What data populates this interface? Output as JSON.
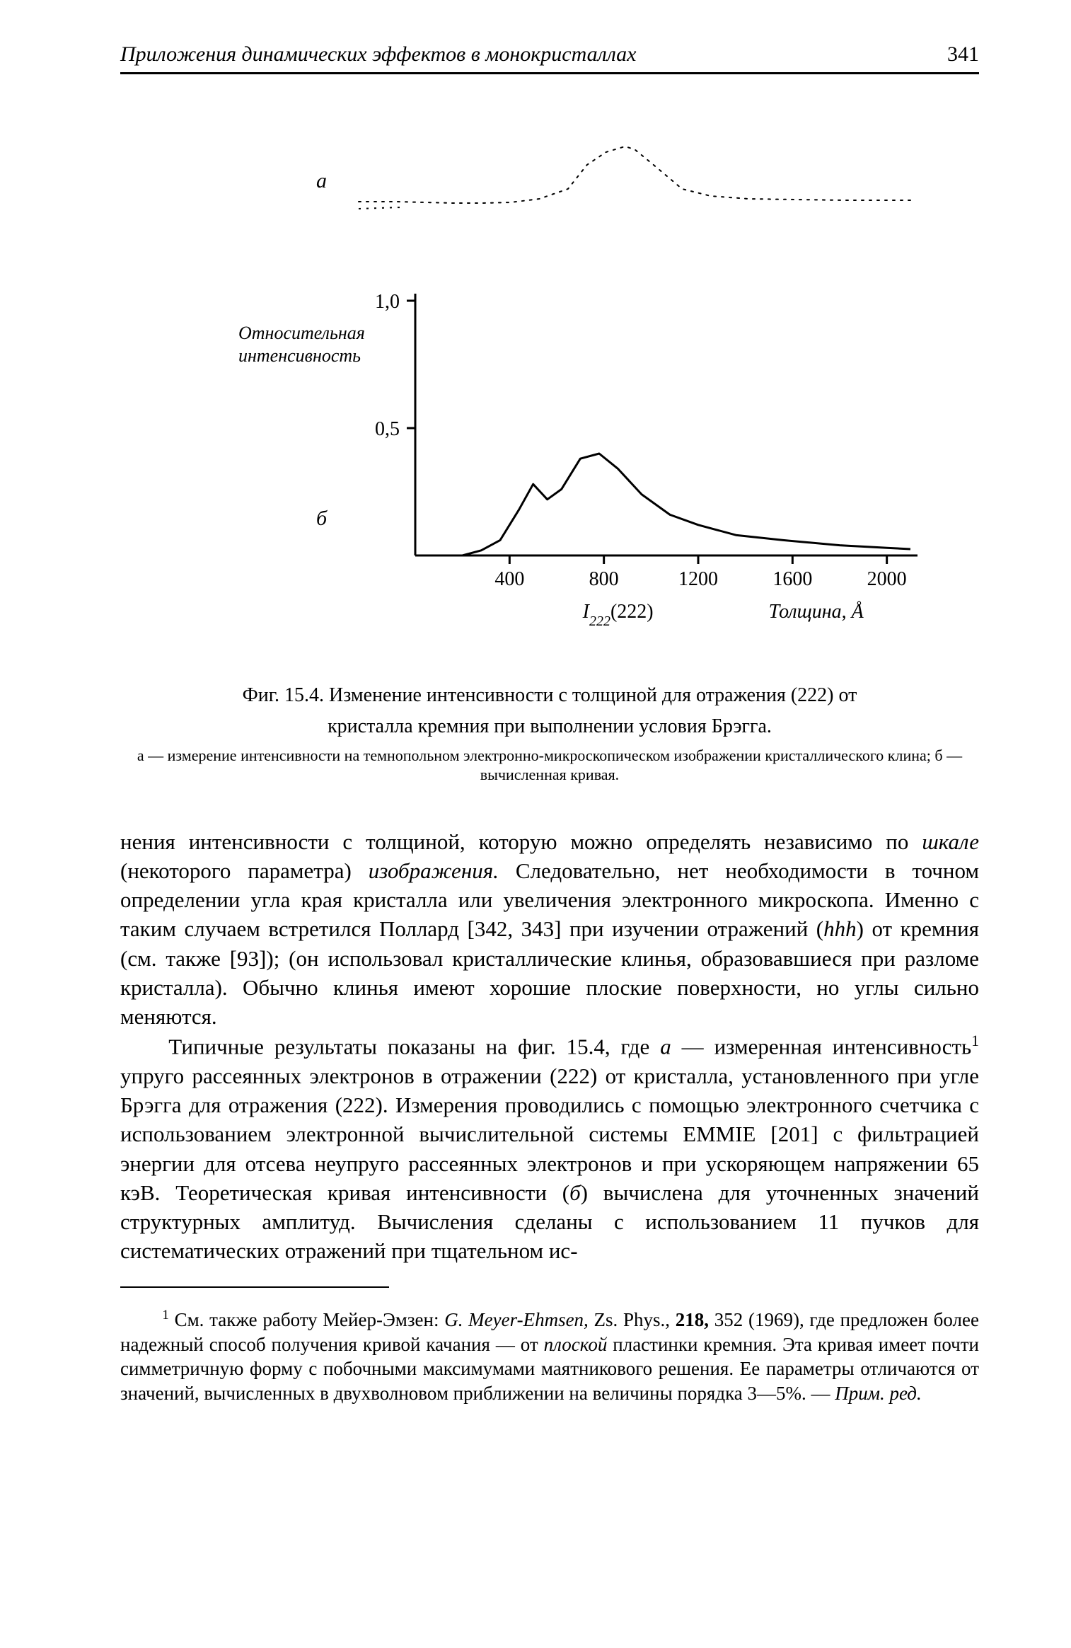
{
  "header": {
    "running_title": "Приложения динамических эффектов в монокристаллах",
    "page_number": "341"
  },
  "figure": {
    "type": "line",
    "background_color": "#ffffff",
    "axis_color": "#000000",
    "curve_a": {
      "label": "а",
      "label_fontsize": 30,
      "stroke_color": "#000000",
      "stroke_width": 2,
      "style": "dotted",
      "points": [
        [
          120,
          10
        ],
        [
          200,
          10
        ],
        [
          260,
          9
        ],
        [
          320,
          8
        ],
        [
          380,
          8
        ],
        [
          440,
          9
        ],
        [
          500,
          14
        ],
        [
          560,
          28
        ],
        [
          600,
          62
        ],
        [
          640,
          80
        ],
        [
          680,
          88
        ],
        [
          700,
          84
        ],
        [
          740,
          62
        ],
        [
          800,
          28
        ],
        [
          860,
          18
        ],
        [
          940,
          14
        ],
        [
          1040,
          13
        ],
        [
          1140,
          12
        ],
        [
          1280,
          12
        ]
      ],
      "y_offset": 0,
      "height": 110
    },
    "curve_b": {
      "label": "б",
      "label_fontsize": 30,
      "stroke_color": "#000000",
      "stroke_width": 3,
      "style": "solid",
      "y_axis": {
        "label": "Относительная\nинтенсивность",
        "label_fontsize": 26,
        "label_fontstyle": "italic",
        "ticks": [
          0.5,
          1.0
        ],
        "ylim": [
          0,
          1.0
        ]
      },
      "x_axis": {
        "ticks": [
          400,
          800,
          1200,
          1600,
          2000
        ],
        "xlim": [
          0,
          2100
        ],
        "label_left": "I",
        "label_left_sub": "222",
        "label_left_paren": "(222)",
        "label_right": "Толщина, Å",
        "label_fontsize": 28
      },
      "points": [
        [
          0,
          0.0
        ],
        [
          120,
          0.0
        ],
        [
          200,
          0.0
        ],
        [
          280,
          0.02
        ],
        [
          360,
          0.06
        ],
        [
          440,
          0.18
        ],
        [
          500,
          0.28
        ],
        [
          560,
          0.22
        ],
        [
          620,
          0.26
        ],
        [
          700,
          0.38
        ],
        [
          780,
          0.4
        ],
        [
          860,
          0.34
        ],
        [
          960,
          0.24
        ],
        [
          1080,
          0.16
        ],
        [
          1200,
          0.12
        ],
        [
          1360,
          0.08
        ],
        [
          1560,
          0.06
        ],
        [
          1800,
          0.04
        ],
        [
          2000,
          0.03
        ],
        [
          2100,
          0.025
        ]
      ]
    },
    "caption_line1": "Фиг. 15.4. Изменение интенсивности с толщиной для отражения (222) от",
    "caption_line2": "кристалла кремния при выполнении условия Брэгга.",
    "caption_sub": "а — измерение интенсивности на темнопольном электронно-микроскопическом изображении кристаллического клина; б — вычисленная кривая."
  },
  "body": {
    "para1": "нения интенсивности с толщиной, которую можно определять независимо по ",
    "para1_em1": "шкале",
    "para1_cont1": " (некоторого параметра) ",
    "para1_em2": "изображения.",
    "para1_cont2": " Следовательно, нет необходимости в точном определении угла края кристалла или увеличения электронного микроскопа. Именно с таким случаем встретился Поллард [342, 343] при изучении отражений (",
    "para1_em3": "hhh",
    "para1_cont3": ") от кремния (см. также [93]); (он использовал кристаллические клинья, образовавшиеся при разломе кристалла). Обычно клинья имеют хорошие плоские поверхности, но углы сильно меняются.",
    "para2_a": "Типичные результаты показаны на фиг. 15.4, где ",
    "para2_em_a": "а",
    "para2_b": " — измеренная интенсивность",
    "para2_sup": "1",
    "para2_c": " упруго рассеянных электронов в отражении (222) от кристалла, установленного при угле Брэгга для отражения (222). Измерения проводились с помощью электронного счетчика с использованием электронной вычислительной системы EMMIE [201] с фильтрацией энергии для отсева неупруго рассеянных электронов и при ускоряющем напряжении 65 кэВ. Теоретическая кривая интенсивности (",
    "para2_em_b": "б",
    "para2_d": ") вычислена для уточненных значений структурных амплитуд. Вычисления сделаны с использованием 11 пучков для систематических отражений при тщательном ис-"
  },
  "footnote": {
    "sup": "1",
    "text_a": " См. также работу Мейер-Эмзен: ",
    "em1": "G. Meyer-Ehmsen,",
    "text_b": " Zs. Phys., ",
    "bold1": "218,",
    "text_c": " 352 (1969), где предложен более надежный способ получения кривой качания — от ",
    "em2": "плоской",
    "text_d": " пластинки кремния. Эта кривая имеет почти симметричную форму с побочными максимумами маятникового решения. Ее параметры отличаются от значений, вычисленных в двухволновом приближении на величины порядка 3—5%. — ",
    "em3": "Прим. ред."
  }
}
